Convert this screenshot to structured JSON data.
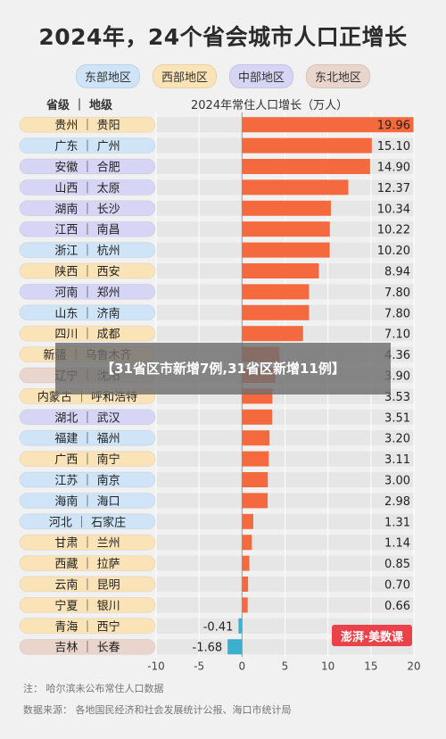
{
  "title": "2024年，24个省会城市人口正增长",
  "legend": [
    {
      "label": "东部地区",
      "color": "#cfe4f7"
    },
    {
      "label": "西部地区",
      "color": "#fbe3b8"
    },
    {
      "label": "中部地区",
      "color": "#d7d5f5"
    },
    {
      "label": "东北地区",
      "color": "#ead5cd"
    }
  ],
  "headers": {
    "left": "省级 ｜ 地级",
    "right": "2024年常住人口增长（万人）"
  },
  "overlay_text": "【31省区市新增7例,31省区新增11例】",
  "logo_text": "澎湃·美数课",
  "footnotes": {
    "note": "注：  哈尔滨未公布常住人口数据",
    "source": "数据来源：  各地国民经济和社会发展统计公报、海口市统计局"
  },
  "chart_data": {
    "type": "bar",
    "orientation": "horizontal",
    "title": "2024年常住人口增长（万人）",
    "xlim": [
      -10,
      20
    ],
    "xticks": [
      -10,
      -5,
      0,
      5,
      10,
      15,
      20
    ],
    "positive_color": "#f46a3e",
    "negative_color": "#3ab0d0",
    "region_colors": {
      "east": "#cfe4f7",
      "west": "#fbe3b8",
      "central": "#d7d5f5",
      "northeast": "#ead5cd"
    },
    "categories": [
      "贵州 ｜ 贵阳",
      "广东 ｜ 广州",
      "安徽 ｜ 合肥",
      "山西 ｜ 太原",
      "湖南 ｜ 长沙",
      "江西 ｜ 南昌",
      "浙江 ｜ 杭州",
      "陕西 ｜ 西安",
      "河南 ｜ 郑州",
      "山东 ｜ 济南",
      "四川 ｜ 成都",
      "新疆 ｜ 乌鲁木齐",
      "辽宁 ｜ 沈阳",
      "内蒙古 ｜ 呼和浩特",
      "湖北 ｜ 武汉",
      "福建 ｜ 福州",
      "广西 ｜ 南宁",
      "江苏 ｜ 南京",
      "海南 ｜ 海口",
      "河北 ｜ 石家庄",
      "甘肃 ｜ 兰州",
      "西藏 ｜ 拉萨",
      "云南 ｜ 昆明",
      "宁夏 ｜ 银川",
      "青海 ｜ 西宁",
      "吉林 ｜ 长春"
    ],
    "regions": [
      "west",
      "east",
      "central",
      "central",
      "central",
      "central",
      "east",
      "west",
      "central",
      "east",
      "west",
      "west",
      "northeast",
      "west",
      "central",
      "east",
      "west",
      "east",
      "east",
      "east",
      "west",
      "west",
      "west",
      "west",
      "west",
      "northeast"
    ],
    "values": [
      19.96,
      15.1,
      14.9,
      12.37,
      10.34,
      10.22,
      10.2,
      8.94,
      7.8,
      7.8,
      7.1,
      4.36,
      3.9,
      3.53,
      3.51,
      3.2,
      3.11,
      3.0,
      2.98,
      1.31,
      1.14,
      0.85,
      0.7,
      0.66,
      -0.41,
      -1.68
    ],
    "value_labels": [
      "19.96",
      "15.10",
      "14.90",
      "12.37",
      "10.34",
      "10.22",
      "10.20",
      "8.94",
      "7.80",
      "7.80",
      "7.10",
      "4.36",
      "3.90",
      "3.53",
      "3.51",
      "3.20",
      "3.11",
      "3.00",
      "2.98",
      "1.31",
      "1.14",
      "0.85",
      "0.70",
      "0.66",
      "-0.41",
      "-1.68"
    ]
  }
}
